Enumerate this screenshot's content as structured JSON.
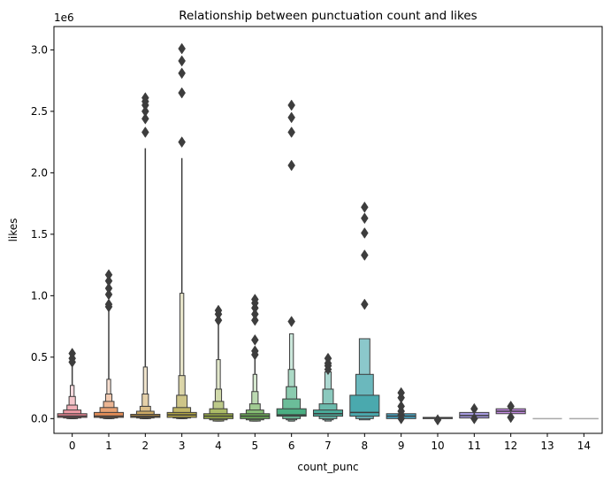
{
  "chart_data": {
    "type": "boxen",
    "title": "Relationship between punctuation count and likes",
    "xlabel": "count_punc",
    "ylabel": "likes",
    "y_offset_label": "1e6",
    "ylim": [
      -0.12,
      3.19
    ],
    "y_ticks": [
      0.0,
      0.5,
      1.0,
      1.5,
      2.0,
      2.5,
      3.0
    ],
    "y_tick_labels": [
      "0.0",
      "0.5",
      "1.0",
      "1.5",
      "2.0",
      "2.5",
      "3.0"
    ],
    "categories": [
      "0",
      "1",
      "2",
      "3",
      "4",
      "5",
      "6",
      "7",
      "8",
      "9",
      "10",
      "11",
      "12",
      "13",
      "14"
    ],
    "grid": false,
    "legend": "none",
    "series": [
      {
        "category": "0",
        "color": "#e8828f",
        "median": 0.02,
        "boxes": [
          [
            0.01,
            0.04
          ],
          [
            0.005,
            0.07
          ],
          [
            0.0,
            0.11
          ],
          [
            0.0,
            0.18
          ],
          [
            0.0,
            0.27
          ]
        ],
        "whisker": [
          0.0,
          0.46
        ],
        "outliers": [
          0.46,
          0.49,
          0.53
        ]
      },
      {
        "category": "1",
        "color": "#e28c56",
        "median": 0.02,
        "boxes": [
          [
            0.01,
            0.05
          ],
          [
            0.005,
            0.09
          ],
          [
            0.0,
            0.14
          ],
          [
            0.0,
            0.2
          ],
          [
            0.0,
            0.32
          ]
        ],
        "whisker": [
          0.0,
          0.9
        ],
        "outliers": [
          0.91,
          0.93,
          1.01,
          1.06,
          1.12,
          1.17
        ]
      },
      {
        "category": "2",
        "color": "#c69a45",
        "median": 0.02,
        "boxes": [
          [
            0.01,
            0.035
          ],
          [
            0.005,
            0.06
          ],
          [
            0.0,
            0.1
          ],
          [
            0.0,
            0.2
          ],
          [
            0.0,
            0.42
          ]
        ],
        "whisker": [
          0.0,
          2.2
        ],
        "outliers": [
          2.33,
          2.44,
          2.5,
          2.55,
          2.58,
          2.61
        ]
      },
      {
        "category": "3",
        "color": "#b2a545",
        "median": 0.03,
        "boxes": [
          [
            0.01,
            0.05
          ],
          [
            0.005,
            0.09
          ],
          [
            0.0,
            0.19
          ],
          [
            0.0,
            0.35
          ],
          [
            0.0,
            1.02
          ]
        ],
        "whisker": [
          0.0,
          2.12
        ],
        "outliers": [
          2.25,
          2.65,
          2.81,
          2.91,
          3.01
        ]
      },
      {
        "category": "4",
        "color": "#98ac46",
        "median": 0.02,
        "boxes": [
          [
            0.0,
            0.04
          ],
          [
            -0.01,
            0.08
          ],
          [
            -0.02,
            0.14
          ],
          [
            -0.02,
            0.24
          ],
          [
            -0.02,
            0.48
          ]
        ],
        "whisker": [
          -0.02,
          0.77
        ],
        "outliers": [
          0.8,
          0.85,
          0.88
        ]
      },
      {
        "category": "5",
        "color": "#6cad56",
        "median": 0.02,
        "boxes": [
          [
            0.0,
            0.04
          ],
          [
            -0.01,
            0.07
          ],
          [
            -0.02,
            0.12
          ],
          [
            -0.02,
            0.22
          ],
          [
            -0.02,
            0.36
          ]
        ],
        "whisker": [
          -0.02,
          0.5
        ],
        "outliers": [
          0.52,
          0.55,
          0.64,
          0.8,
          0.85,
          0.9,
          0.94,
          0.97
        ]
      },
      {
        "category": "6",
        "color": "#4aae82",
        "median": 0.03,
        "boxes": [
          [
            0.02,
            0.08
          ],
          [
            0.0,
            0.16
          ],
          [
            -0.01,
            0.26
          ],
          [
            -0.02,
            0.4
          ],
          [
            -0.02,
            0.69
          ]
        ],
        "whisker": [
          -0.02,
          0.69
        ],
        "outliers": [
          0.79,
          2.06,
          2.33,
          2.45,
          2.55
        ]
      },
      {
        "category": "7",
        "color": "#4aab9a",
        "median": 0.04,
        "boxes": [
          [
            0.02,
            0.07
          ],
          [
            0.0,
            0.12
          ],
          [
            -0.01,
            0.24
          ],
          [
            -0.02,
            0.38
          ]
        ],
        "whisker": [
          -0.02,
          0.38
        ],
        "outliers": [
          0.4,
          0.43,
          0.45,
          0.49
        ]
      },
      {
        "category": "8",
        "color": "#4aa9ae",
        "median": 0.05,
        "boxes": [
          [
            0.02,
            0.19
          ],
          [
            0.0,
            0.36
          ],
          [
            -0.01,
            0.65
          ]
        ],
        "whisker": [
          -0.01,
          0.65
        ],
        "outliers": [
          0.93,
          1.33,
          1.51,
          1.63,
          1.72
        ]
      },
      {
        "category": "9",
        "color": "#48a4c2",
        "median": 0.02,
        "boxes": [
          [
            0.0,
            0.04
          ]
        ],
        "whisker": [
          0.0,
          0.04
        ],
        "outliers": [
          0.0,
          0.03,
          0.06,
          0.1,
          0.17,
          0.21
        ]
      },
      {
        "category": "10",
        "color": "#6a9ed8",
        "median": 0.005,
        "boxes": [
          [
            0.0,
            0.01
          ]
        ],
        "whisker": [
          0.0,
          0.01
        ],
        "outliers": [
          -0.01
        ]
      },
      {
        "category": "11",
        "color": "#a69adf",
        "median": 0.025,
        "boxes": [
          [
            0.005,
            0.05
          ]
        ],
        "whisker": [
          0.005,
          0.05
        ],
        "outliers": [
          0.0,
          0.08
        ]
      },
      {
        "category": "12",
        "color": "#c58be3",
        "median": 0.06,
        "boxes": [
          [
            0.04,
            0.08
          ]
        ],
        "whisker": [
          0.04,
          0.08
        ],
        "outliers": [
          0.01,
          0.1
        ]
      },
      {
        "category": "13",
        "color": "#e08fc7",
        "median": 0.0,
        "boxes": [
          [
            0.0,
            0.0
          ]
        ],
        "whisker": [
          0.0,
          0.0
        ],
        "outliers": []
      },
      {
        "category": "14",
        "color": "#e78fae",
        "median": 0.0,
        "boxes": [
          [
            0.0,
            0.0
          ]
        ],
        "whisker": [
          0.0,
          0.0
        ],
        "outliers": []
      }
    ]
  }
}
